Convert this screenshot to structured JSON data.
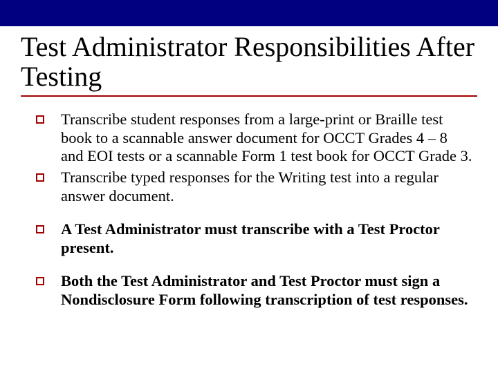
{
  "colors": {
    "topbar": "#000080",
    "accent": "#a00000",
    "text": "#000000",
    "background": "#ffffff"
  },
  "title": "Test Administrator Responsibilities After Testing",
  "bullets": [
    {
      "text": "Transcribe student responses from a large-print or Braille test book to a scannable answer document for OCCT Grades 4 – 8 and EOI tests or a scannable Form 1 test book for OCCT Grade 3.",
      "bold": false,
      "gap": false
    },
    {
      "text": "Transcribe typed responses for the Writing test into a regular answer document.",
      "bold": false,
      "gap": false
    },
    {
      "text": "A Test Administrator must transcribe with a Test Proctor present.",
      "bold": true,
      "gap": true
    },
    {
      "text": "Both the Test Administrator and Test Proctor must sign a Nondisclosure Form following transcription of test responses.",
      "bold": true,
      "gap": true
    }
  ]
}
